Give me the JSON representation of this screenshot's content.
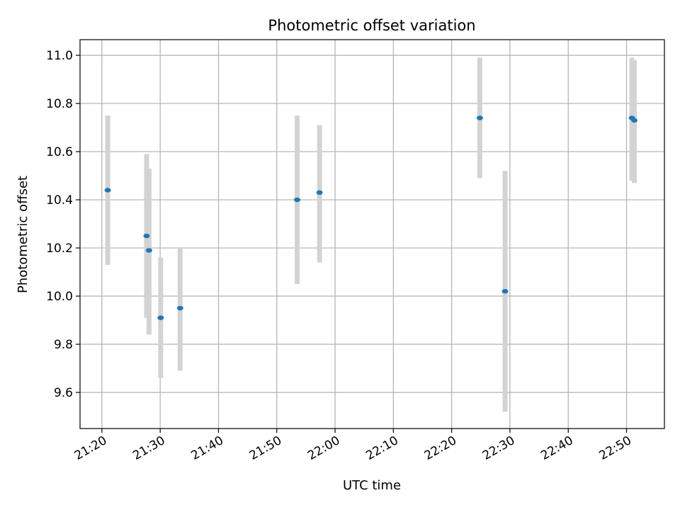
{
  "chart_data": {
    "type": "scatter",
    "title": "Photometric offset variation",
    "xlabel": "UTC time",
    "ylabel": "Photometric offset",
    "x_ticks": [
      "21:20",
      "21:30",
      "21:40",
      "21:50",
      "22:00",
      "22:10",
      "22:20",
      "22:30",
      "22:40",
      "22:50"
    ],
    "y_ticks": [
      "9.6",
      "9.8",
      "10.0",
      "10.2",
      "10.4",
      "10.6",
      "10.8",
      "11.0"
    ],
    "xlim": [
      "21:16:15",
      "22:56:30"
    ],
    "ylim": [
      9.45,
      11.065
    ],
    "grid": true,
    "legend": "none",
    "colors": {
      "marker": "#1f77b4",
      "errorbar": "#d3d3d3",
      "grid": "#b0b0b0"
    },
    "points": [
      {
        "x": "21:21:00",
        "y": 10.44,
        "y_low": 10.13,
        "y_high": 10.75
      },
      {
        "x": "21:27:40",
        "y": 10.25,
        "y_low": 9.91,
        "y_high": 10.59
      },
      {
        "x": "21:28:05",
        "y": 10.19,
        "y_low": 9.84,
        "y_high": 10.53
      },
      {
        "x": "21:30:05",
        "y": 9.91,
        "y_low": 9.66,
        "y_high": 10.16
      },
      {
        "x": "21:33:25",
        "y": 9.95,
        "y_low": 9.69,
        "y_high": 10.2
      },
      {
        "x": "21:53:30",
        "y": 10.4,
        "y_low": 10.05,
        "y_high": 10.75
      },
      {
        "x": "21:57:20",
        "y": 10.43,
        "y_low": 10.14,
        "y_high": 10.71
      },
      {
        "x": "22:24:50",
        "y": 10.74,
        "y_low": 10.49,
        "y_high": 10.99
      },
      {
        "x": "22:29:10",
        "y": 10.02,
        "y_low": 9.52,
        "y_high": 10.52
      },
      {
        "x": "22:50:55",
        "y": 10.74,
        "y_low": 10.48,
        "y_high": 10.99
      },
      {
        "x": "22:51:20",
        "y": 10.73,
        "y_low": 10.47,
        "y_high": 10.98
      }
    ]
  }
}
